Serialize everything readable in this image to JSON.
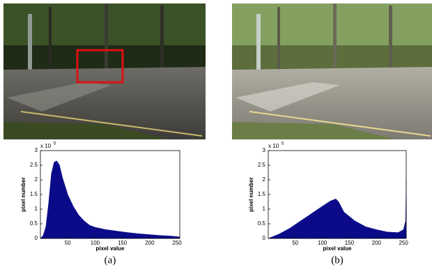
{
  "chart_data": [
    {
      "type": "area",
      "caption": "(a)",
      "xlabel": "pixel value",
      "ylabel": "pixel number",
      "multiplier": {
        "base": "x 10",
        "exponent": "5"
      },
      "x": [
        0,
        5,
        10,
        15,
        20,
        25,
        30,
        35,
        40,
        50,
        60,
        70,
        80,
        90,
        100,
        120,
        140,
        160,
        180,
        200,
        220,
        240,
        255
      ],
      "values": [
        0,
        0.1,
        0.4,
        1.2,
        2.2,
        2.6,
        2.65,
        2.5,
        2.1,
        1.5,
        1.1,
        0.8,
        0.6,
        0.45,
        0.38,
        0.3,
        0.25,
        0.2,
        0.16,
        0.13,
        0.1,
        0.08,
        0.05
      ],
      "color": "#0b0b8a",
      "xlim": [
        0,
        255
      ],
      "ylim": [
        0,
        3
      ],
      "xticks": [
        50,
        100,
        150,
        200,
        250
      ],
      "yticks": [
        0,
        0.5,
        1,
        1.5,
        2,
        2.5,
        3
      ]
    },
    {
      "type": "area",
      "caption": "(b)",
      "xlabel": "pixel value",
      "ylabel": "pixel number",
      "multiplier": {
        "base": "x 10",
        "exponent": "5"
      },
      "x": [
        0,
        20,
        40,
        60,
        80,
        100,
        115,
        125,
        130,
        140,
        160,
        180,
        200,
        220,
        240,
        250,
        254,
        255
      ],
      "values": [
        0,
        0.15,
        0.35,
        0.6,
        0.85,
        1.1,
        1.28,
        1.35,
        1.25,
        0.9,
        0.6,
        0.4,
        0.3,
        0.22,
        0.2,
        0.3,
        0.6,
        2.0
      ],
      "color": "#0b0b8a",
      "xlim": [
        0,
        255
      ],
      "ylim": [
        0,
        3
      ],
      "xticks": [
        50,
        100,
        150,
        200,
        250
      ],
      "yticks": [
        0,
        0.5,
        1,
        1.5,
        2,
        2.5,
        3
      ]
    }
  ]
}
